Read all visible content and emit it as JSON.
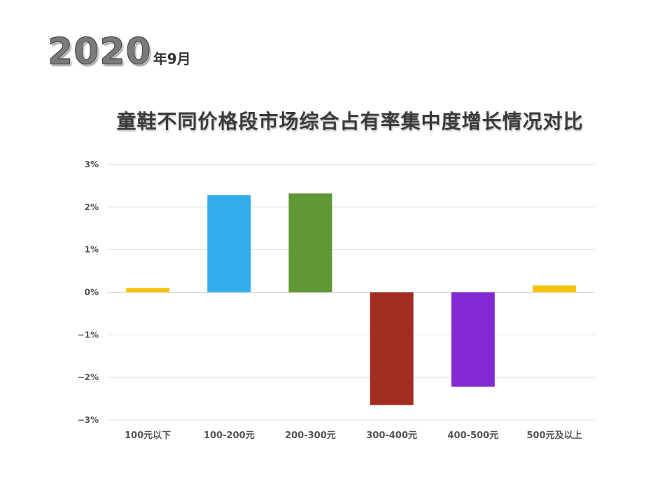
{
  "header": {
    "year": "2020",
    "suffix": "年9月"
  },
  "chart_data": {
    "type": "bar",
    "title": "童鞋不同价格段市场综合占有率集中度增长情况对比",
    "xlabel": "",
    "ylabel": "",
    "categories": [
      "100元以下",
      "100-200元",
      "200-300元",
      "300-400元",
      "400-500元",
      "500元及以上"
    ],
    "values": [
      0.1,
      2.28,
      2.32,
      -2.65,
      -2.22,
      0.16
    ],
    "colors": [
      "#f5c20c",
      "#33acea",
      "#609834",
      "#a32c22",
      "#8229d3",
      "#f5c20c"
    ],
    "ylim": [
      -3,
      3
    ],
    "yticks": [
      3,
      2,
      1,
      0,
      -1,
      -2,
      -3
    ],
    "ytick_labels": [
      "3%",
      "2%",
      "1%",
      "0%",
      "−1%",
      "−2%",
      "−3%"
    ],
    "grid": true,
    "legend": "none"
  }
}
